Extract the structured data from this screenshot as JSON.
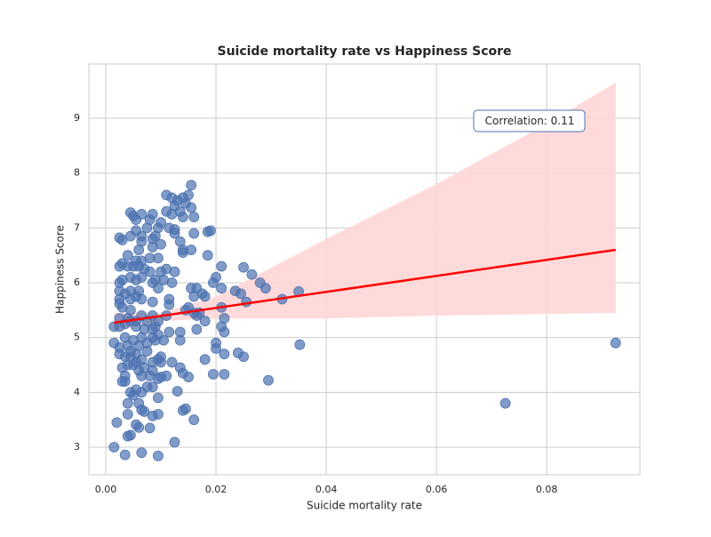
{
  "chart_data": {
    "type": "scatter",
    "title": "Suicide mortality rate vs Happiness Score",
    "x_label": "Suicide mortality rate",
    "y_label": "Happiness Score",
    "annotation": "Correlation: 0.11",
    "color": "#4c72b0",
    "grid": true,
    "xlim": [
      -0.00306,
      0.0969
    ],
    "ylim": [
      2.497,
      9.99
    ],
    "xticks": [
      {
        "value": 0,
        "label": "0.00"
      },
      {
        "value": 0.02,
        "label": "0.02"
      },
      {
        "value": 0.04,
        "label": "0.04"
      },
      {
        "value": 0.06,
        "label": "0.06"
      },
      {
        "value": 0.08,
        "label": "0.08"
      }
    ],
    "yticks": [
      3,
      4,
      5,
      6,
      7,
      8,
      9
    ],
    "x": [
      0.0725,
      0.0925,
      0.0352,
      0.0295,
      0.035,
      0.032,
      0.029,
      0.028,
      0.0265,
      0.025,
      0.0245,
      0.0255,
      0.0235,
      0.024,
      0.025,
      0.0215,
      0.0215,
      0.0195,
      0.02,
      0.02,
      0.0215,
      0.021,
      0.0215,
      0.021,
      0.021,
      0.02,
      0.0195,
      0.021,
      0.0185,
      0.018,
      0.018,
      0.0175,
      0.017,
      0.016,
      0.0165,
      0.0155,
      0.016,
      0.018,
      0.0165,
      0.015,
      0.0155,
      0.016,
      0.0185,
      0.019,
      0.016,
      0.0155,
      0.015,
      0.0155,
      0.014,
      0.0145,
      0.0135,
      0.014,
      0.013,
      0.012,
      0.011,
      0.0125,
      0.011,
      0.012,
      0.0115,
      0.0125,
      0.0125,
      0.0135,
      0.014,
      0.014,
      0.0125,
      0.011,
      0.012,
      0.0115,
      0.0115,
      0.011,
      0.0135,
      0.0145,
      0.0165,
      0.0115,
      0.0105,
      0.0135,
      0.012,
      0.0135,
      0.014,
      0.015,
      0.013,
      0.0145,
      0.014,
      0.016,
      0.0125,
      0.0095,
      0.0065,
      0.0035,
      0.0015,
      0.0045,
      0.004,
      0.006,
      0.0055,
      0.008,
      0.002,
      0.004,
      0.007,
      0.0065,
      0.0095,
      0.0085,
      0.0095,
      0.006,
      0.004,
      0.005,
      0.0045,
      0.0055,
      0.0065,
      0.0075,
      0.0085,
      0.0035,
      0.003,
      0.0035,
      0.0065,
      0.008,
      0.01,
      0.0095,
      0.011,
      0.0085,
      0.003,
      0.004,
      0.005,
      0.006,
      0.007,
      0.0055,
      0.0065,
      0.0045,
      0.0035,
      0.0025,
      0.0045,
      0.0055,
      0.0075,
      0.0085,
      0.01,
      0.0095,
      0.01,
      0.0075,
      0.006,
      0.004,
      0.0025,
      0.0015,
      0.0035,
      0.005,
      0.0065,
      0.0085,
      0.009,
      0.0095,
      0.007,
      0.0055,
      0.0045,
      0.0035,
      0.0025,
      0.0015,
      0.0025,
      0.004,
      0.0055,
      0.0075,
      0.0085,
      0.009,
      0.0095,
      0.0085,
      0.0065,
      0.0045,
      0.003,
      0.0025,
      0.0025,
      0.0045,
      0.0055,
      0.0065,
      0.0085,
      0.0035,
      0.0045,
      0.006,
      0.0025,
      0.0025,
      0.003,
      0.0045,
      0.0055,
      0.0065,
      0.0085,
      0.009,
      0.0095,
      0.0105,
      0.01,
      0.008,
      0.007,
      0.006,
      0.005,
      0.004,
      0.0025,
      0.003,
      0.0055,
      0.0065,
      0.008,
      0.0095,
      0.004,
      0.006,
      0.0085,
      0.0065,
      0.0045,
      0.0065,
      0.0085,
      0.009,
      0.0025,
      0.003,
      0.0055,
      0.0075,
      0.0095,
      0.01,
      0.008,
      0.0055,
      0.005,
      0.0065,
      0.0045,
      0.0085,
      0.01
    ],
    "values": [
      3.8,
      4.9,
      4.87,
      4.22,
      5.84,
      5.7,
      5.9,
      6.0,
      6.15,
      6.28,
      5.8,
      5.65,
      5.85,
      4.72,
      4.65,
      4.7,
      4.33,
      4.33,
      4.8,
      4.9,
      5.1,
      5.2,
      5.35,
      5.55,
      5.9,
      6.1,
      6.0,
      6.3,
      6.5,
      5.3,
      5.75,
      5.8,
      5.45,
      5.45,
      5.9,
      5.9,
      5.75,
      4.6,
      5.15,
      5.55,
      6.6,
      6.9,
      6.93,
      6.95,
      7.2,
      7.37,
      7.6,
      7.78,
      7.55,
      7.45,
      7.3,
      7.2,
      7.5,
      7.55,
      7.6,
      7.4,
      7.3,
      7.25,
      7.0,
      6.9,
      6.97,
      6.75,
      6.55,
      6.6,
      6.2,
      6.25,
      6.0,
      5.7,
      5.6,
      5.4,
      5.1,
      5.5,
      5.4,
      5.1,
      4.95,
      4.95,
      4.55,
      4.45,
      4.35,
      4.28,
      4.02,
      3.7,
      3.67,
      3.5,
      3.09,
      2.84,
      2.9,
      2.86,
      3.0,
      3.22,
      3.2,
      3.36,
      3.41,
      3.35,
      3.45,
      3.6,
      3.65,
      3.68,
      3.6,
      3.57,
      3.9,
      3.8,
      3.8,
      3.95,
      4.0,
      4.05,
      4.0,
      4.1,
      4.1,
      4.2,
      4.2,
      4.3,
      4.3,
      4.3,
      4.28,
      4.25,
      4.3,
      4.4,
      4.45,
      4.5,
      4.5,
      4.4,
      4.45,
      4.55,
      4.6,
      4.65,
      4.65,
      4.7,
      4.75,
      4.7,
      4.75,
      4.55,
      4.55,
      4.6,
      4.65,
      4.9,
      4.85,
      4.85,
      4.82,
      4.9,
      5.0,
      4.95,
      5.0,
      5.0,
      4.95,
      5.05,
      5.15,
      5.2,
      5.3,
      5.25,
      5.2,
      5.2,
      5.35,
      5.35,
      5.3,
      5.3,
      5.15,
      5.2,
      5.3,
      5.4,
      5.4,
      5.5,
      5.55,
      5.62,
      5.7,
      5.7,
      5.75,
      5.7,
      5.65,
      5.8,
      5.85,
      5.85,
      5.85,
      6.0,
      6.05,
      6.1,
      6.05,
      6.1,
      6.0,
      6.05,
      5.9,
      6.05,
      6.2,
      6.2,
      6.25,
      6.3,
      6.3,
      6.3,
      6.3,
      6.35,
      6.4,
      6.4,
      6.45,
      6.45,
      6.5,
      6.6,
      6.65,
      6.75,
      6.85,
      6.85,
      6.8,
      6.85,
      6.82,
      6.78,
      6.95,
      7.0,
      7.0,
      6.7,
      7.15,
      7.15,
      7.22,
      7.25,
      7.28,
      7.25,
      7.1
    ],
    "fit": {
      "color": "#ff0000",
      "x": [
        0.0015,
        0.0925
      ],
      "y": [
        5.27,
        6.6
      ]
    },
    "band": {
      "color": "#ffd6d6",
      "x": [
        0.0015,
        0.01,
        0.02,
        0.04,
        0.06,
        0.08,
        0.0925
      ],
      "lower": [
        5.1,
        5.3,
        5.35,
        5.35,
        5.4,
        5.43,
        5.45
      ],
      "upper": [
        5.45,
        5.45,
        5.75,
        6.8,
        7.8,
        8.9,
        9.65
      ]
    }
  }
}
